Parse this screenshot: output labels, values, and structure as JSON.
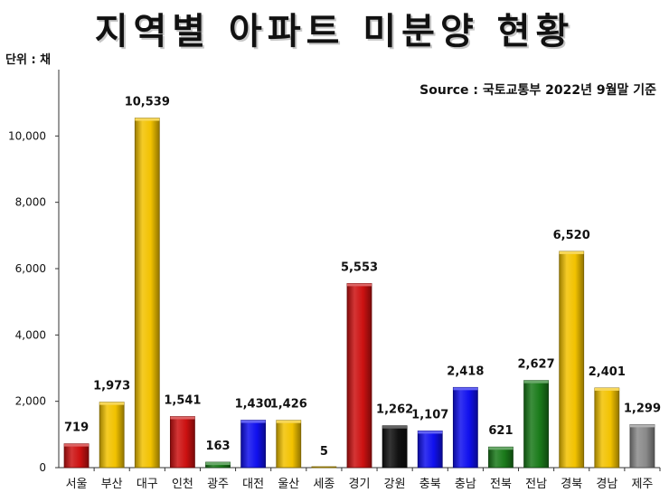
{
  "chart_data": {
    "type": "bar",
    "title": "지역별 아파트 미분양 현황",
    "unit_label": "단위 : 채",
    "source": "Source :  국토교통부  2022년 9월말 기준",
    "ylim": [
      0,
      12000
    ],
    "yticks": [
      0,
      2000,
      4000,
      6000,
      8000,
      10000
    ],
    "ytick_labels": [
      "0",
      "2,000",
      "4,000",
      "6,000",
      "8,000",
      "10,000"
    ],
    "grid": false,
    "categories": [
      "서울",
      "부산",
      "대구",
      "인천",
      "광주",
      "대전",
      "울산",
      "세종",
      "경기",
      "강원",
      "충북",
      "충남",
      "전북",
      "전남",
      "경북",
      "경남",
      "제주"
    ],
    "values": [
      719,
      1973,
      10539,
      1541,
      163,
      1430,
      1426,
      5,
      5553,
      1262,
      1107,
      2418,
      621,
      2627,
      6520,
      2401,
      1299
    ],
    "value_labels": [
      "719",
      "1,973",
      "10,539",
      "1,541",
      "163",
      "1,430",
      "1,426",
      "5",
      "5,553",
      "1,262",
      "1,107",
      "2,418",
      "621",
      "2,627",
      "6,520",
      "2,401",
      "1,299"
    ],
    "colors": [
      "#cc1111",
      "#f2c200",
      "#f2c200",
      "#cc1111",
      "#1a7a1a",
      "#1010ee",
      "#f2c200",
      "#f2c200",
      "#cc1111",
      "#111111",
      "#1010ee",
      "#1010ee",
      "#1a7a1a",
      "#1a7a1a",
      "#f2c200",
      "#f2c200",
      "#8a8a8a"
    ]
  }
}
